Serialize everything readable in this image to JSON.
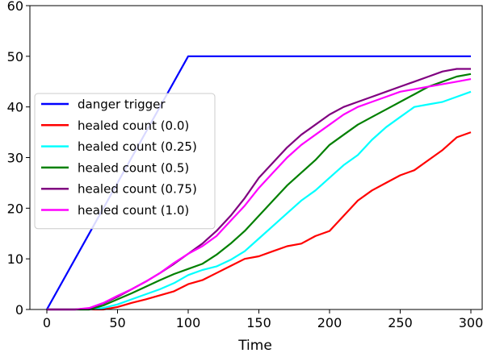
{
  "chart_data": {
    "type": "line",
    "xlabel": "Time",
    "ylabel": "",
    "xlim": [
      -12,
      308
    ],
    "ylim": [
      0,
      60
    ],
    "xticks": [
      0,
      50,
      100,
      150,
      200,
      250,
      300
    ],
    "yticks": [
      0,
      10,
      20,
      30,
      40,
      50,
      60
    ],
    "grid": false,
    "legend": "center-left",
    "series": [
      {
        "name": "danger trigger",
        "color": "#0000ff",
        "x": [
          0,
          100,
          300
        ],
        "y": [
          0,
          50,
          50
        ]
      },
      {
        "name": "healed count (0.0)",
        "color": "#ff0000",
        "x": [
          0,
          20,
          30,
          40,
          50,
          60,
          70,
          80,
          90,
          100,
          110,
          120,
          130,
          140,
          150,
          160,
          170,
          180,
          190,
          200,
          210,
          220,
          230,
          240,
          250,
          260,
          270,
          280,
          290,
          300
        ],
        "y": [
          0,
          0,
          0,
          0,
          0.5,
          1.3,
          2.0,
          2.8,
          3.6,
          5.0,
          5.8,
          7.2,
          8.6,
          10.0,
          10.5,
          11.5,
          12.5,
          13.0,
          14.5,
          15.5,
          18.5,
          21.5,
          23.5,
          25.0,
          26.5,
          27.5,
          29.5,
          31.5,
          34.0,
          35.0
        ]
      },
      {
        "name": "healed count (0.25)",
        "color": "#00ffff",
        "x": [
          0,
          20,
          30,
          40,
          50,
          60,
          70,
          80,
          90,
          100,
          110,
          120,
          130,
          140,
          150,
          160,
          170,
          180,
          190,
          200,
          210,
          220,
          230,
          240,
          250,
          260,
          270,
          280,
          290,
          300
        ],
        "y": [
          0,
          0,
          0,
          0.3,
          1.0,
          2.0,
          3.0,
          4.0,
          5.2,
          6.8,
          7.8,
          8.5,
          9.8,
          11.5,
          14.0,
          16.5,
          19.0,
          21.5,
          23.5,
          26.0,
          28.5,
          30.5,
          33.5,
          36.0,
          38.0,
          40.0,
          40.5,
          41.0,
          42.0,
          43.0
        ]
      },
      {
        "name": "healed count (0.5)",
        "color": "#008000",
        "x": [
          0,
          20,
          30,
          40,
          50,
          60,
          70,
          80,
          90,
          100,
          110,
          120,
          130,
          140,
          150,
          160,
          170,
          180,
          190,
          200,
          210,
          220,
          230,
          240,
          250,
          260,
          270,
          280,
          290,
          300
        ],
        "y": [
          0,
          0,
          0,
          0.8,
          2.0,
          3.2,
          4.5,
          5.8,
          7.0,
          8.0,
          9.0,
          10.8,
          13.0,
          15.5,
          18.5,
          21.5,
          24.5,
          27.0,
          29.5,
          32.5,
          34.5,
          36.5,
          38.0,
          39.5,
          41.0,
          42.5,
          44.0,
          45.0,
          46.0,
          46.5
        ]
      },
      {
        "name": "healed count (0.75)",
        "color": "#800080",
        "x": [
          0,
          20,
          30,
          40,
          50,
          60,
          70,
          80,
          90,
          100,
          110,
          120,
          130,
          140,
          150,
          160,
          170,
          180,
          190,
          200,
          210,
          220,
          230,
          240,
          250,
          260,
          270,
          280,
          290,
          300
        ],
        "y": [
          0,
          0,
          0.2,
          1.2,
          2.5,
          4.0,
          5.5,
          7.2,
          9.0,
          11.0,
          13.0,
          15.5,
          18.5,
          22.0,
          26.0,
          29.0,
          32.0,
          34.5,
          36.5,
          38.5,
          40.0,
          41.0,
          42.0,
          43.0,
          44.0,
          45.0,
          46.0,
          47.0,
          47.5,
          47.5
        ]
      },
      {
        "name": "healed count (1.0)",
        "color": "#ff00ff",
        "x": [
          0,
          20,
          30,
          40,
          50,
          60,
          70,
          80,
          90,
          100,
          110,
          120,
          130,
          140,
          150,
          160,
          170,
          180,
          190,
          200,
          210,
          220,
          230,
          240,
          250,
          260,
          270,
          280,
          290,
          300
        ],
        "y": [
          0,
          0,
          0.3,
          1.3,
          2.7,
          4.0,
          5.5,
          7.2,
          9.2,
          11.0,
          12.5,
          14.5,
          17.5,
          20.5,
          24.0,
          27.0,
          30.0,
          32.5,
          34.5,
          36.5,
          38.5,
          40.0,
          41.0,
          42.0,
          43.0,
          43.5,
          44.0,
          44.5,
          45.0,
          45.5
        ]
      }
    ]
  }
}
